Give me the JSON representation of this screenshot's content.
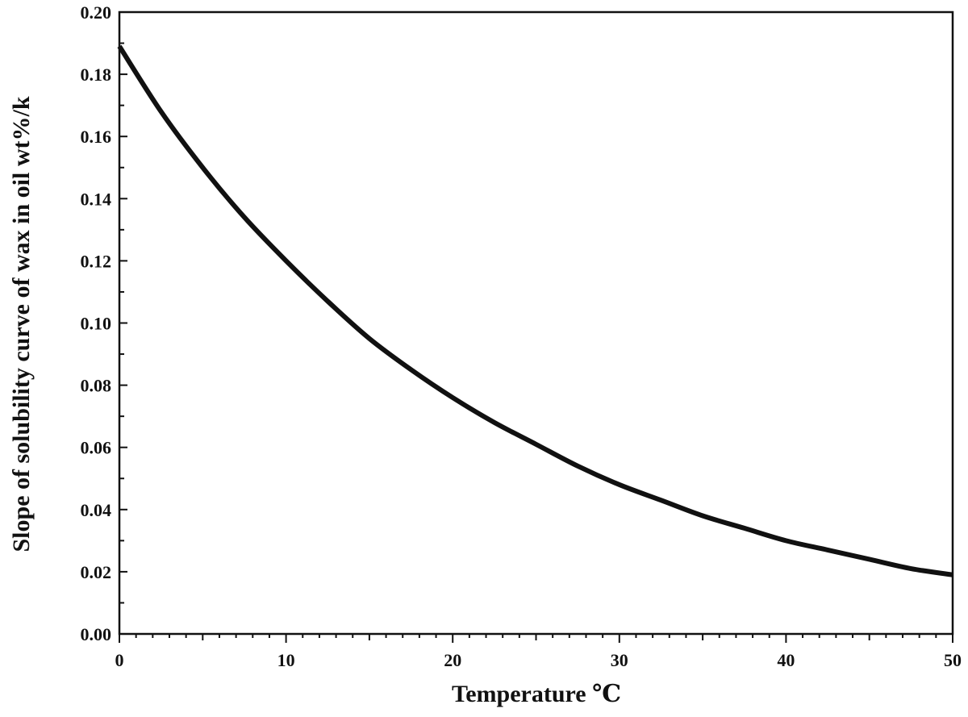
{
  "chart_data": {
    "type": "line",
    "title": "",
    "xlabel": "Temperature ℃",
    "ylabel": "Slope of solubility curve of wax in oil wt%/k",
    "xlim": [
      0,
      50
    ],
    "ylim": [
      0,
      0.2
    ],
    "x_ticks": [
      0,
      10,
      20,
      30,
      40,
      50
    ],
    "x_tick_labels": [
      "0",
      "10",
      "20",
      "30",
      "40",
      "50"
    ],
    "x_minor_step": 1,
    "y_ticks": [
      0,
      0.02,
      0.04,
      0.06,
      0.08,
      0.1,
      0.12,
      0.14,
      0.16,
      0.18,
      0.2
    ],
    "y_tick_labels": [
      "0.00",
      "0.02",
      "0.04",
      "0.06",
      "0.08",
      "0.10",
      "0.12",
      "0.14",
      "0.16",
      "0.18",
      "0.20"
    ],
    "y_minor_step": 0.01,
    "grid": false,
    "legend": "none",
    "line_color": "#111111",
    "series": [
      {
        "x": [
          0,
          2.5,
          5,
          7.5,
          10,
          12.5,
          15,
          17.5,
          20,
          22.5,
          25,
          27.5,
          30,
          32.5,
          35,
          37.5,
          40,
          42.5,
          45,
          47.5,
          50
        ],
        "values": [
          0.189,
          0.168,
          0.15,
          0.134,
          0.12,
          0.107,
          0.095,
          0.085,
          0.076,
          0.068,
          0.061,
          0.054,
          0.048,
          0.043,
          0.038,
          0.034,
          0.03,
          0.027,
          0.024,
          0.021,
          0.019
        ]
      }
    ]
  }
}
